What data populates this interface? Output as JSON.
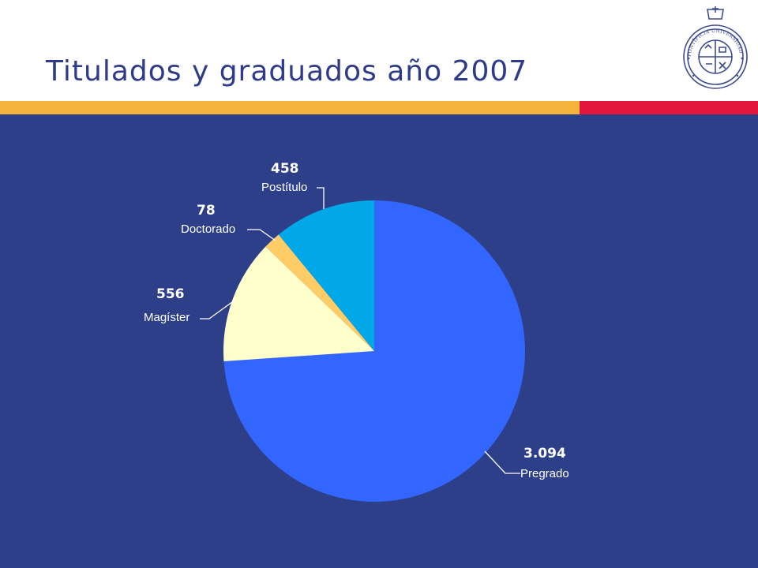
{
  "slide": {
    "title": "Titulados y graduados año 2007",
    "colors": {
      "title": "#2E3A8A",
      "panel": "#2E3F8A",
      "stripe_yellow": "#F5B43C",
      "stripe_red": "#E3173E",
      "seal": "#3D4C8F"
    },
    "seal": {
      "icon": "university-seal-icon",
      "text": "PONTIFICIA UNIVERSIDAD CATOLICA DE CHILE"
    }
  },
  "chart_data": {
    "type": "pie",
    "title": "",
    "start_angle_deg": 0,
    "direction": "clockwise",
    "slices": [
      {
        "label": "Pregrado",
        "value": 3094,
        "value_label": "3.094",
        "color": "#3366FF"
      },
      {
        "label": "Magíster",
        "value": 556,
        "value_label": "556",
        "color": "#FFFFCC"
      },
      {
        "label": "Doctorado",
        "value": 78,
        "value_label": "78",
        "color": "#FFCC66"
      },
      {
        "label": "Postítulo",
        "value": 458,
        "value_label": "458",
        "color": "#00A8E8"
      }
    ]
  }
}
